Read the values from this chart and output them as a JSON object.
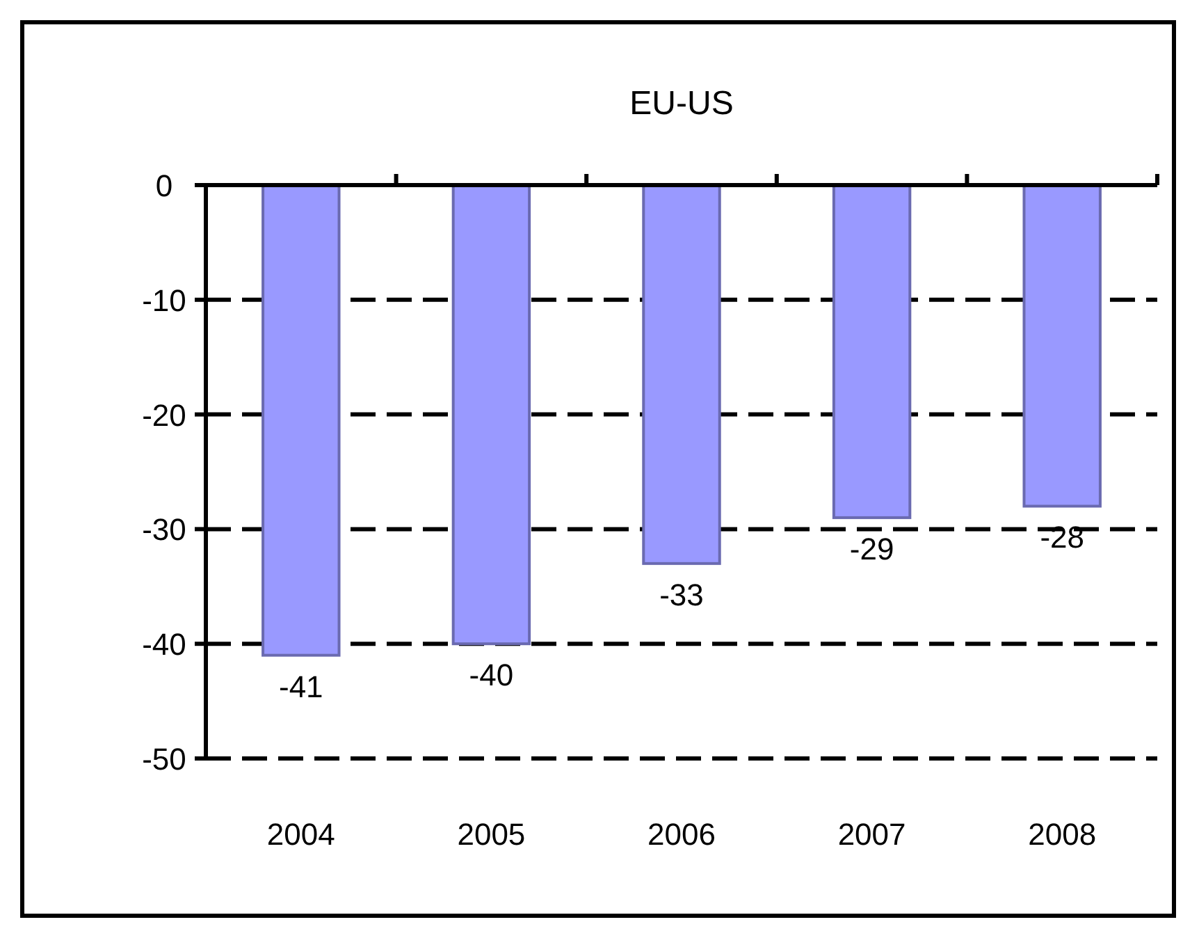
{
  "chart_data": {
    "type": "bar",
    "title": "EU-US",
    "categories": [
      "2004",
      "2005",
      "2006",
      "2007",
      "2008"
    ],
    "values": [
      -41,
      -40,
      -33,
      -29,
      -28
    ],
    "color": "#9999ff",
    "ylim": [
      -50,
      0
    ],
    "yticks": [
      0,
      -10,
      -20,
      -30,
      -40,
      -50
    ],
    "grid": "y",
    "data_labels": true
  }
}
